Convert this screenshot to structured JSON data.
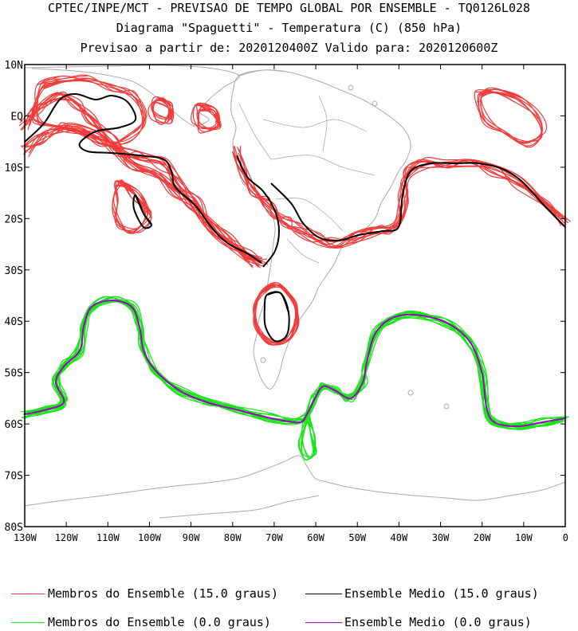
{
  "header": {
    "line1": "CPTEC/INPE/MCT - PREVISAO DE TEMPO GLOBAL POR ENSEMBLE - TQ0126L028",
    "line2": "Diagrama \"Spaguetti\" - Temperatura (C) (850 hPa)",
    "line3": "Previsao a partir de: 2020120400Z  Valido para: 2020120600Z"
  },
  "axes": {
    "lat_labels": [
      "10N",
      "EQ",
      "10S",
      "20S",
      "30S",
      "40S",
      "50S",
      "60S",
      "70S",
      "80S"
    ],
    "lat_values": [
      10,
      0,
      -10,
      -20,
      -30,
      -40,
      -50,
      -60,
      -70,
      -80
    ],
    "lon_labels": [
      "130W",
      "120W",
      "110W",
      "100W",
      "90W",
      "80W",
      "70W",
      "60W",
      "50W",
      "40W",
      "30W",
      "20W",
      "10W",
      "0"
    ],
    "lon_values": [
      -130,
      -120,
      -110,
      -100,
      -90,
      -80,
      -70,
      -60,
      -50,
      -40,
      -30,
      -20,
      -10,
      0
    ]
  },
  "legend": {
    "items": [
      {
        "label": "Membros do Ensemble (15.0 graus)",
        "color": "#f03c3c"
      },
      {
        "label": "Ensemble Medio (15.0 graus)",
        "color": "#000000"
      },
      {
        "label": "Membros do Ensemble (0.0 graus)",
        "color": "#19e619"
      },
      {
        "label": "Ensemble Medio (0.0 graus)",
        "color": "#a000c8"
      }
    ]
  },
  "map": {
    "land_color": "#aaaaaa"
  }
}
